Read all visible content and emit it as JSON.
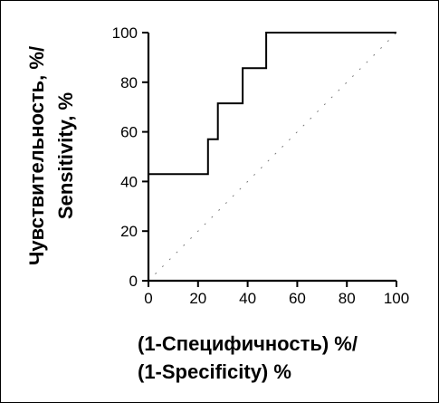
{
  "chart_data": {
    "type": "line",
    "title": "",
    "xlabel_line1": "(1-Специфичность) %/",
    "xlabel_line2": "(1-Specificity) %",
    "ylabel_line1": "Чувствительность, %/",
    "ylabel_line2": "Sensitivity, %",
    "xlim": [
      0,
      100
    ],
    "ylim": [
      0,
      100
    ],
    "x_ticks": [
      0,
      20,
      40,
      60,
      80,
      100
    ],
    "y_ticks": [
      0,
      20,
      40,
      60,
      80,
      100
    ],
    "grid": false,
    "legend": "none",
    "series": [
      {
        "style": "step",
        "color": "#000000",
        "points": [
          [
            0,
            43
          ],
          [
            24,
            43
          ],
          [
            24,
            57
          ],
          [
            28,
            57
          ],
          [
            28,
            71.5
          ],
          [
            38,
            71.5
          ],
          [
            38,
            85.7
          ],
          [
            47.5,
            85.7
          ],
          [
            47.5,
            100
          ],
          [
            100,
            100
          ]
        ]
      },
      {
        "style": "dotted",
        "color": "#777777",
        "points": [
          [
            0,
            0
          ],
          [
            100,
            100
          ]
        ]
      }
    ]
  }
}
